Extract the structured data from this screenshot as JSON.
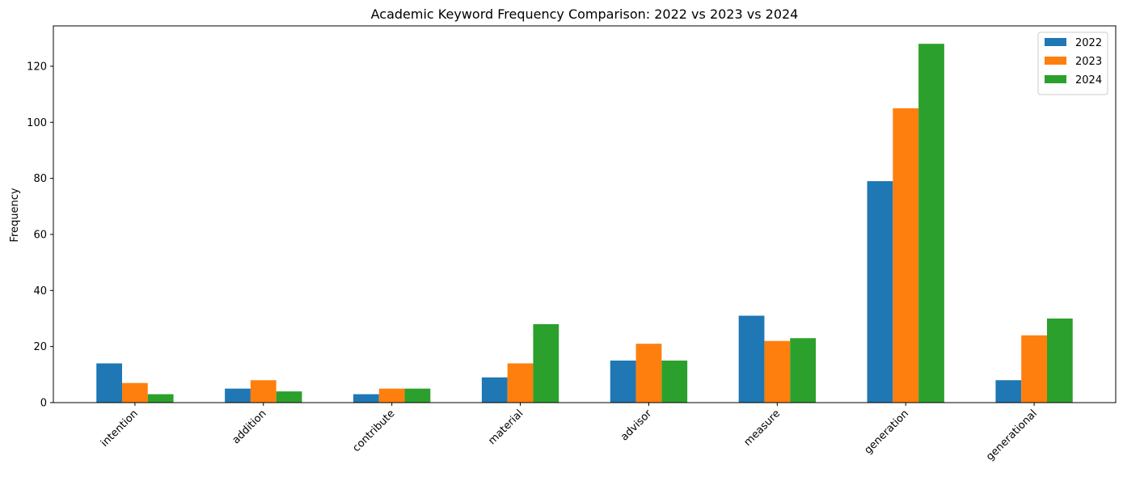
{
  "chart_data": {
    "type": "bar",
    "title": "Academic Keyword Frequency Comparison: 2022 vs 2023 vs 2024",
    "xlabel": "",
    "ylabel": "Frequency",
    "categories": [
      "intention",
      "addition",
      "contribute",
      "material",
      "advisor",
      "measure",
      "generation",
      "generational"
    ],
    "series": [
      {
        "name": "2022",
        "color": "#1f77b4",
        "values": [
          14,
          5,
          3,
          9,
          15,
          31,
          79,
          8
        ]
      },
      {
        "name": "2023",
        "color": "#ff7f0e",
        "values": [
          7,
          8,
          5,
          14,
          21,
          22,
          105,
          24
        ]
      },
      {
        "name": "2024",
        "color": "#2ca02c",
        "values": [
          3,
          4,
          5,
          28,
          15,
          23,
          128,
          30
        ]
      }
    ],
    "ylim": [
      0,
      134.4
    ],
    "yticks": [
      0,
      20,
      40,
      60,
      80,
      100,
      120
    ],
    "grid": false,
    "legend_position": "top-right"
  }
}
